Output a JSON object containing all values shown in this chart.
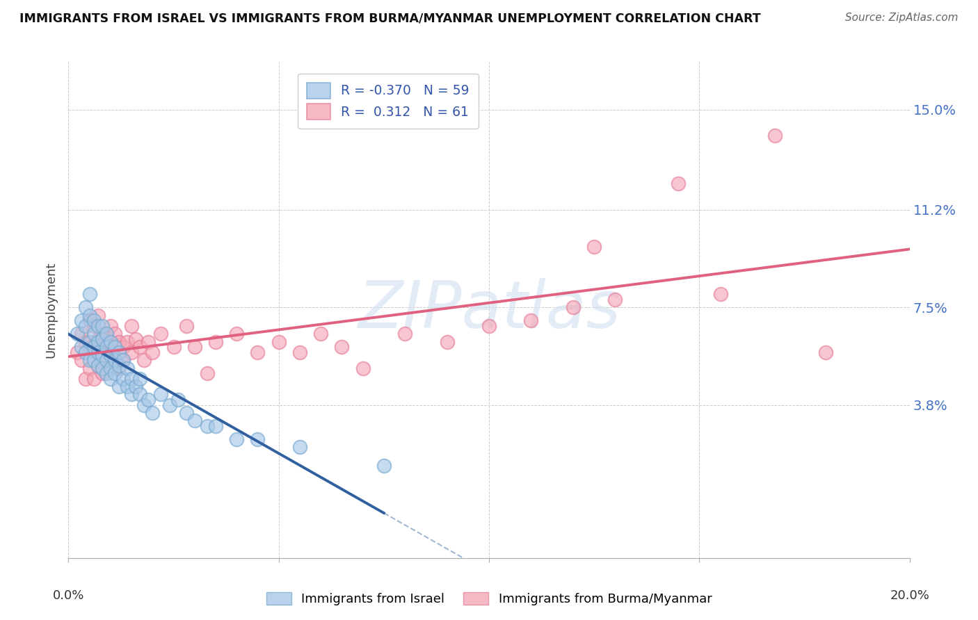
{
  "title": "IMMIGRANTS FROM ISRAEL VS IMMIGRANTS FROM BURMA/MYANMAR UNEMPLOYMENT CORRELATION CHART",
  "source": "Source: ZipAtlas.com",
  "ylabel": "Unemployment",
  "yticks": [
    0.038,
    0.075,
    0.112,
    0.15
  ],
  "ytick_labels": [
    "3.8%",
    "7.5%",
    "11.2%",
    "15.0%"
  ],
  "xmin": 0.0,
  "xmax": 0.2,
  "ymin": -0.02,
  "ymax": 0.168,
  "israel_R": -0.37,
  "israel_N": 59,
  "burma_R": 0.312,
  "burma_N": 61,
  "israel_color": "#a8c8e8",
  "burma_color": "#f4a8b8",
  "israel_edge_color": "#7aaad0",
  "burma_edge_color": "#e8809a",
  "israel_line_color": "#3060a0",
  "burma_line_color": "#e06080",
  "watermark_color": "#d0dff0",
  "legend_label_israel": "Immigrants from Israel",
  "legend_label_burma": "Immigrants from Burma/Myanmar",
  "israel_scatter_x": [
    0.002,
    0.003,
    0.003,
    0.004,
    0.004,
    0.004,
    0.005,
    0.005,
    0.005,
    0.005,
    0.006,
    0.006,
    0.006,
    0.006,
    0.007,
    0.007,
    0.007,
    0.007,
    0.008,
    0.008,
    0.008,
    0.008,
    0.009,
    0.009,
    0.009,
    0.009,
    0.01,
    0.01,
    0.01,
    0.01,
    0.011,
    0.011,
    0.011,
    0.012,
    0.012,
    0.012,
    0.013,
    0.013,
    0.014,
    0.014,
    0.015,
    0.015,
    0.016,
    0.017,
    0.017,
    0.018,
    0.019,
    0.02,
    0.022,
    0.024,
    0.026,
    0.028,
    0.03,
    0.033,
    0.035,
    0.04,
    0.045,
    0.055,
    0.075
  ],
  "israel_scatter_y": [
    0.065,
    0.07,
    0.06,
    0.075,
    0.068,
    0.058,
    0.08,
    0.062,
    0.055,
    0.072,
    0.07,
    0.065,
    0.06,
    0.055,
    0.068,
    0.062,
    0.058,
    0.053,
    0.068,
    0.063,
    0.057,
    0.052,
    0.065,
    0.06,
    0.055,
    0.05,
    0.062,
    0.057,
    0.052,
    0.048,
    0.06,
    0.055,
    0.05,
    0.058,
    0.053,
    0.045,
    0.055,
    0.048,
    0.052,
    0.045,
    0.048,
    0.042,
    0.045,
    0.042,
    0.048,
    0.038,
    0.04,
    0.035,
    0.042,
    0.038,
    0.04,
    0.035,
    0.032,
    0.03,
    0.03,
    0.025,
    0.025,
    0.022,
    0.015
  ],
  "burma_scatter_x": [
    0.002,
    0.003,
    0.003,
    0.004,
    0.004,
    0.005,
    0.005,
    0.005,
    0.006,
    0.006,
    0.006,
    0.007,
    0.007,
    0.007,
    0.008,
    0.008,
    0.008,
    0.009,
    0.009,
    0.009,
    0.01,
    0.01,
    0.01,
    0.011,
    0.011,
    0.012,
    0.012,
    0.013,
    0.013,
    0.014,
    0.015,
    0.015,
    0.016,
    0.017,
    0.018,
    0.019,
    0.02,
    0.022,
    0.025,
    0.028,
    0.03,
    0.033,
    0.035,
    0.04,
    0.045,
    0.05,
    0.055,
    0.06,
    0.065,
    0.07,
    0.08,
    0.09,
    0.1,
    0.11,
    0.12,
    0.125,
    0.13,
    0.145,
    0.155,
    0.168,
    0.18
  ],
  "burma_scatter_y": [
    0.058,
    0.065,
    0.055,
    0.062,
    0.048,
    0.07,
    0.06,
    0.052,
    0.068,
    0.058,
    0.048,
    0.072,
    0.063,
    0.053,
    0.065,
    0.058,
    0.05,
    0.065,
    0.06,
    0.055,
    0.068,
    0.062,
    0.058,
    0.065,
    0.055,
    0.062,
    0.052,
    0.06,
    0.055,
    0.062,
    0.068,
    0.058,
    0.063,
    0.06,
    0.055,
    0.062,
    0.058,
    0.065,
    0.06,
    0.068,
    0.06,
    0.05,
    0.062,
    0.065,
    0.058,
    0.062,
    0.058,
    0.065,
    0.06,
    0.052,
    0.065,
    0.062,
    0.068,
    0.07,
    0.075,
    0.098,
    0.078,
    0.122,
    0.08,
    0.14,
    0.058
  ],
  "israel_line_x0": 0.0,
  "israel_line_x1": 0.075,
  "israel_line_x_dash0": 0.075,
  "israel_line_x_dash1": 0.2,
  "burma_line_x0": 0.0,
  "burma_line_x1": 0.2
}
